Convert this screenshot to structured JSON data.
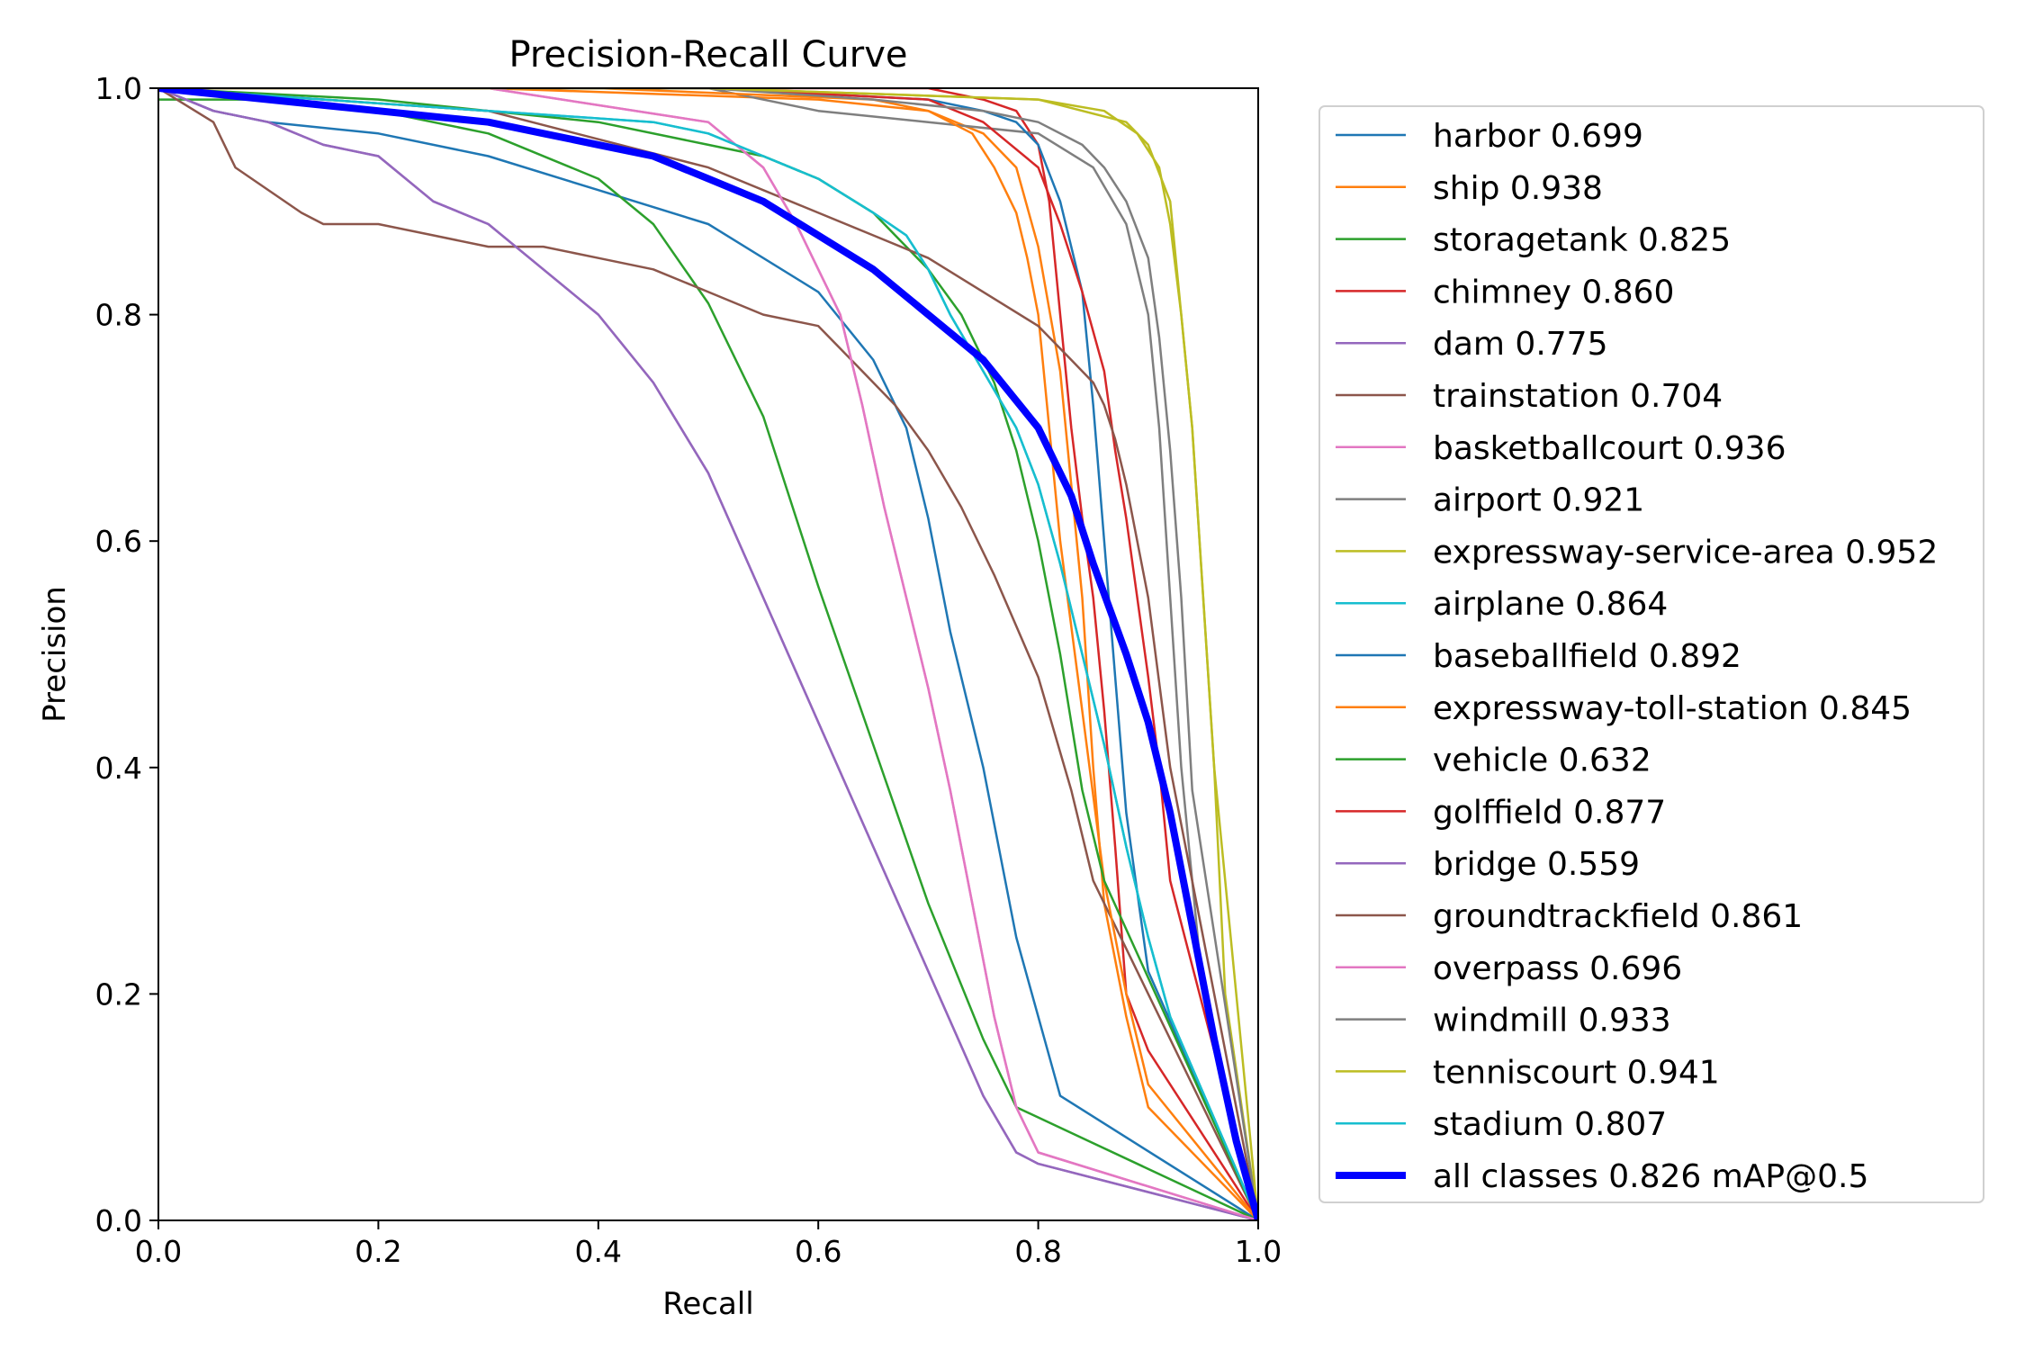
{
  "chart_data": {
    "type": "line",
    "title": "Precision-Recall Curve",
    "xlabel": "Recall",
    "ylabel": "Precision",
    "xlim": [
      0,
      1
    ],
    "ylim": [
      0,
      1
    ],
    "xticks": [
      "0.0",
      "0.2",
      "0.4",
      "0.6",
      "0.8",
      "1.0"
    ],
    "yticks": [
      "0.0",
      "0.2",
      "0.4",
      "0.6",
      "0.8",
      "1.0"
    ],
    "grid": false,
    "legend_position": "outside-right",
    "series": [
      {
        "name": "harbor 0.699",
        "color": "#1f77b4",
        "x": [
          0,
          0.05,
          0.1,
          0.2,
          0.3,
          0.4,
          0.5,
          0.6,
          0.65,
          0.68,
          0.7,
          0.72,
          0.75,
          0.78,
          0.82,
          1.0
        ],
        "y": [
          1,
          0.98,
          0.97,
          0.96,
          0.94,
          0.91,
          0.88,
          0.82,
          0.76,
          0.7,
          0.62,
          0.52,
          0.4,
          0.25,
          0.11,
          0
        ]
      },
      {
        "name": "ship 0.938",
        "color": "#ff7f0e",
        "x": [
          0,
          0.3,
          0.6,
          0.7,
          0.75,
          0.78,
          0.8,
          0.82,
          0.84,
          0.85,
          0.86,
          0.88,
          0.9,
          1.0
        ],
        "y": [
          1,
          1,
          0.99,
          0.98,
          0.96,
          0.93,
          0.86,
          0.75,
          0.55,
          0.4,
          0.28,
          0.18,
          0.1,
          0
        ]
      },
      {
        "name": "storagetank 0.825",
        "color": "#2ca02c",
        "x": [
          0,
          0.1,
          0.2,
          0.3,
          0.4,
          0.45,
          0.5,
          0.55,
          0.6,
          0.65,
          0.7,
          0.75,
          0.78,
          1.0
        ],
        "y": [
          0.99,
          0.99,
          0.98,
          0.96,
          0.92,
          0.88,
          0.81,
          0.71,
          0.56,
          0.42,
          0.28,
          0.16,
          0.1,
          0
        ]
      },
      {
        "name": "chimney 0.860",
        "color": "#d62728",
        "x": [
          0,
          0.4,
          0.7,
          0.75,
          0.78,
          0.8,
          0.81,
          0.82,
          0.83,
          0.84,
          0.85,
          0.86,
          0.87,
          0.88,
          0.9,
          1.0
        ],
        "y": [
          1,
          1,
          1,
          0.99,
          0.98,
          0.95,
          0.9,
          0.8,
          0.7,
          0.62,
          0.55,
          0.45,
          0.33,
          0.2,
          0.15,
          0
        ]
      },
      {
        "name": "dam 0.775",
        "color": "#9467bd",
        "x": [
          0,
          0.05,
          0.1,
          0.15,
          0.2,
          0.25,
          0.3,
          0.35,
          0.4,
          0.45,
          0.5,
          0.55,
          0.6,
          0.65,
          0.7,
          0.75,
          0.78,
          0.8,
          1.0
        ],
        "y": [
          1,
          0.98,
          0.97,
          0.95,
          0.94,
          0.9,
          0.88,
          0.84,
          0.8,
          0.74,
          0.66,
          0.55,
          0.44,
          0.33,
          0.22,
          0.11,
          0.06,
          0.05,
          0
        ]
      },
      {
        "name": "trainstation 0.704",
        "color": "#8c564b",
        "x": [
          0,
          0.05,
          0.07,
          0.13,
          0.15,
          0.2,
          0.25,
          0.3,
          0.35,
          0.4,
          0.45,
          0.5,
          0.55,
          0.6,
          0.63,
          0.67,
          0.7,
          0.73,
          0.76,
          0.8,
          0.83,
          0.85,
          1.0
        ],
        "y": [
          1,
          0.97,
          0.93,
          0.89,
          0.88,
          0.88,
          0.87,
          0.86,
          0.86,
          0.85,
          0.84,
          0.82,
          0.8,
          0.79,
          0.76,
          0.72,
          0.68,
          0.63,
          0.57,
          0.48,
          0.38,
          0.3,
          0
        ]
      },
      {
        "name": "basketballcourt 0.936",
        "color": "#e377c2",
        "x": [
          0,
          0.3,
          0.5,
          0.55,
          0.58,
          0.6,
          0.62,
          0.64,
          0.66,
          0.68,
          0.7,
          0.72,
          0.74,
          0.76,
          0.78,
          0.8,
          1.0
        ],
        "y": [
          1,
          1,
          0.97,
          0.93,
          0.88,
          0.84,
          0.8,
          0.72,
          0.63,
          0.55,
          0.47,
          0.38,
          0.28,
          0.18,
          0.1,
          0.06,
          0
        ]
      },
      {
        "name": "airport 0.921",
        "color": "#7f7f7f",
        "x": [
          0,
          0.5,
          0.6,
          0.7,
          0.8,
          0.85,
          0.88,
          0.9,
          0.91,
          0.92,
          0.93,
          0.95,
          1.0
        ],
        "y": [
          1,
          1,
          0.98,
          0.97,
          0.96,
          0.93,
          0.88,
          0.8,
          0.7,
          0.55,
          0.4,
          0.2,
          0
        ]
      },
      {
        "name": "expressway-service-area 0.952",
        "color": "#bcbd22",
        "x": [
          0,
          0.5,
          0.8,
          0.88,
          0.9,
          0.92,
          0.93,
          0.94,
          0.95,
          0.96,
          0.97,
          1.0
        ],
        "y": [
          1,
          1,
          0.99,
          0.97,
          0.95,
          0.9,
          0.8,
          0.7,
          0.55,
          0.4,
          0.2,
          0
        ]
      },
      {
        "name": "airplane 0.864",
        "color": "#17becf",
        "x": [
          0,
          0.3,
          0.45,
          0.5,
          0.55,
          0.6,
          0.65,
          0.68,
          0.7,
          0.72,
          0.75,
          0.78,
          0.8,
          0.82,
          0.84,
          0.86,
          0.88,
          0.9,
          0.92,
          1.0
        ],
        "y": [
          1,
          0.98,
          0.97,
          0.96,
          0.94,
          0.92,
          0.89,
          0.87,
          0.84,
          0.8,
          0.75,
          0.7,
          0.65,
          0.58,
          0.5,
          0.42,
          0.33,
          0.25,
          0.18,
          0
        ]
      },
      {
        "name": "baseballfield 0.892",
        "color": "#1f77b4",
        "x": [
          0,
          0.5,
          0.7,
          0.75,
          0.78,
          0.8,
          0.82,
          0.84,
          0.85,
          0.86,
          0.87,
          0.88,
          0.9,
          1.0
        ],
        "y": [
          1,
          1,
          0.99,
          0.98,
          0.97,
          0.95,
          0.9,
          0.82,
          0.72,
          0.6,
          0.48,
          0.36,
          0.22,
          0
        ]
      },
      {
        "name": "expressway-toll-station 0.845",
        "color": "#ff7f0e",
        "x": [
          0,
          0.4,
          0.65,
          0.7,
          0.74,
          0.76,
          0.78,
          0.79,
          0.8,
          0.81,
          0.82,
          0.84,
          0.86,
          0.88,
          0.9,
          1.0
        ],
        "y": [
          1,
          1,
          0.99,
          0.98,
          0.96,
          0.93,
          0.89,
          0.85,
          0.8,
          0.7,
          0.6,
          0.45,
          0.3,
          0.2,
          0.12,
          0
        ]
      },
      {
        "name": "vehicle 0.632",
        "color": "#2ca02c",
        "x": [
          0,
          0.2,
          0.3,
          0.4,
          0.5,
          0.55,
          0.6,
          0.65,
          0.7,
          0.73,
          0.76,
          0.78,
          0.8,
          0.82,
          0.84,
          0.86,
          1.0
        ],
        "y": [
          1,
          0.99,
          0.98,
          0.97,
          0.95,
          0.94,
          0.92,
          0.89,
          0.84,
          0.8,
          0.74,
          0.68,
          0.6,
          0.5,
          0.38,
          0.3,
          0
        ]
      },
      {
        "name": "golffield 0.877",
        "color": "#d62728",
        "x": [
          0,
          0.5,
          0.7,
          0.75,
          0.8,
          0.82,
          0.84,
          0.86,
          0.87,
          0.88,
          0.89,
          0.9,
          0.91,
          0.92,
          1.0
        ],
        "y": [
          1,
          1,
          0.99,
          0.97,
          0.93,
          0.88,
          0.82,
          0.75,
          0.68,
          0.62,
          0.55,
          0.48,
          0.4,
          0.3,
          0
        ]
      },
      {
        "name": "bridge 0.559",
        "color": "#9467bd",
        "x": [
          0,
          0.05,
          0.1,
          0.15,
          0.2,
          0.25,
          0.3,
          0.35,
          0.4,
          0.45,
          0.5,
          0.55,
          0.6,
          0.65,
          0.7,
          0.75,
          0.78,
          0.8,
          1.0
        ],
        "y": [
          1,
          0.98,
          0.97,
          0.95,
          0.94,
          0.9,
          0.88,
          0.84,
          0.8,
          0.74,
          0.66,
          0.55,
          0.44,
          0.33,
          0.22,
          0.11,
          0.06,
          0.05,
          0
        ]
      },
      {
        "name": "groundtrackfield 0.861",
        "color": "#8c564b",
        "x": [
          0,
          0.3,
          0.5,
          0.6,
          0.65,
          0.7,
          0.75,
          0.8,
          0.83,
          0.85,
          0.86,
          0.87,
          0.88,
          0.9,
          0.92,
          1.0
        ],
        "y": [
          1,
          0.98,
          0.93,
          0.89,
          0.87,
          0.85,
          0.82,
          0.79,
          0.76,
          0.74,
          0.72,
          0.69,
          0.65,
          0.55,
          0.4,
          0
        ]
      },
      {
        "name": "overpass 0.696",
        "color": "#e377c2",
        "x": [
          0,
          0.3,
          0.5,
          0.55,
          0.58,
          0.6,
          0.62,
          0.64,
          0.66,
          0.68,
          0.7,
          0.72,
          0.74,
          0.76,
          0.78,
          0.8,
          1.0
        ],
        "y": [
          1,
          1,
          0.97,
          0.93,
          0.88,
          0.84,
          0.8,
          0.72,
          0.63,
          0.55,
          0.47,
          0.38,
          0.28,
          0.18,
          0.1,
          0.06,
          0
        ]
      },
      {
        "name": "windmill 0.933",
        "color": "#7f7f7f",
        "x": [
          0,
          0.5,
          0.65,
          0.75,
          0.8,
          0.84,
          0.86,
          0.88,
          0.9,
          0.91,
          0.92,
          0.93,
          0.94,
          1.0
        ],
        "y": [
          1,
          1,
          0.99,
          0.98,
          0.97,
          0.95,
          0.93,
          0.9,
          0.85,
          0.78,
          0.68,
          0.55,
          0.38,
          0
        ]
      },
      {
        "name": "tenniscourt 0.941",
        "color": "#bcbd22",
        "x": [
          0,
          0.5,
          0.8,
          0.86,
          0.89,
          0.91,
          0.92,
          0.93,
          0.94,
          0.95,
          0.96,
          0.98,
          1.0
        ],
        "y": [
          1,
          1,
          0.99,
          0.98,
          0.96,
          0.93,
          0.88,
          0.8,
          0.7,
          0.55,
          0.4,
          0.2,
          0
        ]
      },
      {
        "name": "stadium 0.807",
        "color": "#17becf",
        "x": [
          0,
          0.3,
          0.45,
          0.5,
          0.55,
          0.6,
          0.65,
          0.68,
          0.7,
          0.72,
          0.75,
          0.78,
          0.8,
          0.82,
          0.84,
          0.86,
          0.88,
          0.9,
          0.92,
          1.0
        ],
        "y": [
          1,
          0.98,
          0.97,
          0.96,
          0.94,
          0.92,
          0.89,
          0.87,
          0.84,
          0.8,
          0.75,
          0.7,
          0.65,
          0.58,
          0.5,
          0.42,
          0.33,
          0.25,
          0.18,
          0
        ]
      },
      {
        "name": "all classes 0.826 mAP@0.5",
        "color": "#0000ff",
        "bold": true,
        "x": [
          0,
          0.05,
          0.1,
          0.15,
          0.2,
          0.25,
          0.3,
          0.35,
          0.4,
          0.45,
          0.5,
          0.55,
          0.6,
          0.65,
          0.7,
          0.75,
          0.8,
          0.83,
          0.85,
          0.88,
          0.9,
          0.92,
          0.94,
          0.96,
          0.98,
          1.0
        ],
        "y": [
          1,
          0.995,
          0.99,
          0.985,
          0.98,
          0.975,
          0.97,
          0.96,
          0.95,
          0.94,
          0.92,
          0.9,
          0.87,
          0.84,
          0.8,
          0.76,
          0.7,
          0.64,
          0.58,
          0.5,
          0.44,
          0.36,
          0.26,
          0.16,
          0.07,
          0
        ]
      }
    ]
  }
}
